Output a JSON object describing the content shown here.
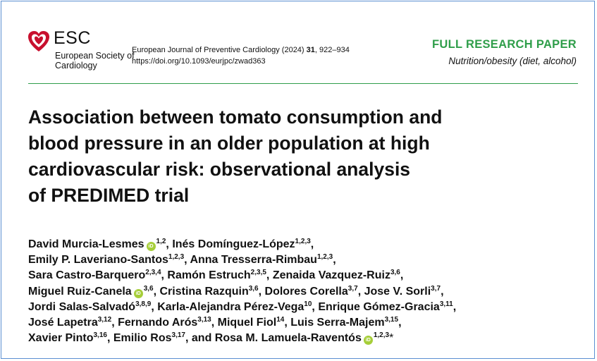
{
  "logo": {
    "word": "ESC",
    "society": "European Society of Cardiology",
    "brand_color": "#c8102e",
    "icon": "heart-icon"
  },
  "journal": {
    "name": "European Journal of Preventive Cardiology (2024)",
    "volume": "31",
    "pages": ", 922–934",
    "doi": "https://doi.org/10.1093/eurjpc/zwad363"
  },
  "paper_type": "FULL RESEARCH PAPER",
  "section": "Nutrition/obesity (diet, alcohol)",
  "accent_color": "#2f9e4a",
  "title_lines": [
    "Association between tomato consumption and",
    "blood pressure in an older population at high",
    "cardiovascular risk: observational analysis",
    "of PREDIMED trial"
  ],
  "author_lines": [
    [
      {
        "name": "David Murcia-Lesmes",
        "orcid": true,
        "aff": "1,2",
        "sep": ", "
      },
      {
        "name": "Inés Domínguez-López",
        "aff": "1,2,3",
        "sep": ","
      }
    ],
    [
      {
        "name": "Emily P. Laveriano-Santos",
        "aff": "1,2,3",
        "sep": ", "
      },
      {
        "name": "Anna Tresserra-Rimbau",
        "aff": "1,2,3",
        "sep": ","
      }
    ],
    [
      {
        "name": "Sara Castro-Barquero",
        "aff": "2,3,4",
        "sep": ", "
      },
      {
        "name": "Ramón Estruch",
        "aff": "2,3,5",
        "sep": ", "
      },
      {
        "name": "Zenaida Vazquez-Ruiz",
        "aff": "3,6",
        "sep": ","
      }
    ],
    [
      {
        "name": "Miguel Ruiz-Canela",
        "orcid": true,
        "aff": "3,6",
        "sep": ", "
      },
      {
        "name": "Cristina Razquin",
        "aff": "3,6",
        "sep": ", "
      },
      {
        "name": "Dolores Corella",
        "aff": "3,7",
        "sep": ", "
      },
      {
        "name": "Jose V. Sorli",
        "aff": "3,7",
        "sep": ","
      }
    ],
    [
      {
        "name": "Jordi Salas-Salvadó",
        "aff": "3,8,9",
        "sep": ", "
      },
      {
        "name": "Karla-Alejandra Pérez-Vega",
        "aff": "10",
        "sep": ", "
      },
      {
        "name": "Enrique Gómez-Gracia",
        "aff": "3,11",
        "sep": ","
      }
    ],
    [
      {
        "name": "José Lapetra",
        "aff": "3,12",
        "sep": ", "
      },
      {
        "name": "Fernando Arós",
        "aff": "3,13",
        "sep": ", "
      },
      {
        "name": "Miquel Fiol",
        "aff": "14",
        "sep": ", "
      },
      {
        "name": "Luis Serra-Majem",
        "aff": "3,15",
        "sep": ","
      }
    ],
    [
      {
        "name": "Xavier Pinto",
        "aff": "3,16",
        "sep": ", "
      },
      {
        "name": "Emilio Ros",
        "aff": "3,17",
        "sep": ", and "
      },
      {
        "name": "Rosa M. Lamuela-Raventós",
        "orcid": true,
        "aff": "1,2,3",
        "star": "*",
        "sep": ""
      }
    ]
  ],
  "orcid_label": "iD",
  "orcid_color": "#a6ce39"
}
